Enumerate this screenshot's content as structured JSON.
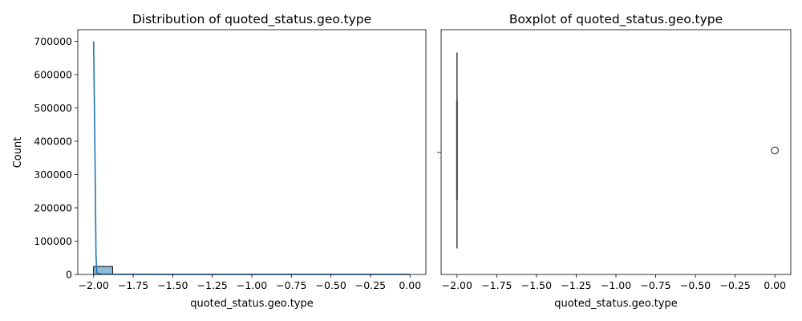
{
  "colors": {
    "hist_fill": "#1f77b4",
    "hist_fill_opacity": 0.5,
    "kde_line": "#1f77b4",
    "box_line": "#3d3d3d",
    "axes": "#000000",
    "background": "#ffffff"
  },
  "chart_data": [
    {
      "type": "bar",
      "subtype": "histogram-with-kde",
      "title": "Distribution of quoted_status.geo.type",
      "xlabel": "quoted_status.geo.type",
      "ylabel": "Count",
      "xlim": [
        -2.1,
        0.1
      ],
      "ylim": [
        0,
        735000
      ],
      "xticks": [
        -2.0,
        -1.75,
        -1.5,
        -1.25,
        -1.0,
        -0.75,
        -0.5,
        -0.25,
        0.0
      ],
      "xtick_labels": [
        "−2.00",
        "−1.75",
        "−1.50",
        "−1.25",
        "−1.00",
        "−0.75",
        "−0.50",
        "−0.25",
        "0.00"
      ],
      "yticks": [
        0,
        100000,
        200000,
        300000,
        400000,
        500000,
        600000,
        700000
      ],
      "ytick_labels": [
        "0",
        "100000",
        "200000",
        "300000",
        "400000",
        "500000",
        "600000",
        "700000"
      ],
      "grid": false,
      "bins": [
        {
          "x0": -2.0,
          "x1": -1.88,
          "count": 24000
        },
        {
          "x0": -1.88,
          "x1": 0.0,
          "count": 0
        }
      ],
      "kde": {
        "x": [
          -2.0,
          -1.99,
          -1.985,
          -1.98,
          -1.95,
          -1.5,
          -1.0,
          -0.5,
          0.0
        ],
        "y": [
          700000,
          300000,
          60000,
          5000,
          800,
          500,
          500,
          500,
          500
        ]
      }
    },
    {
      "type": "boxplot",
      "title": "Boxplot of quoted_status.geo.type",
      "xlabel": "quoted_status.geo.type",
      "ylabel": "",
      "xlim": [
        -2.1,
        0.1
      ],
      "xticks": [
        -2.0,
        -1.75,
        -1.5,
        -1.25,
        -1.0,
        -0.75,
        -0.5,
        -0.25,
        0.0
      ],
      "xtick_labels": [
        "−2.00",
        "−1.75",
        "−1.50",
        "−1.25",
        "−1.00",
        "−0.75",
        "−0.50",
        "−0.25",
        "0.00"
      ],
      "grid": false,
      "box": {
        "q1": -2.0,
        "median": -2.0,
        "q3": -2.0,
        "whisker_low": -2.0,
        "whisker_high": -2.0
      },
      "outliers": [
        0.0
      ]
    }
  ]
}
